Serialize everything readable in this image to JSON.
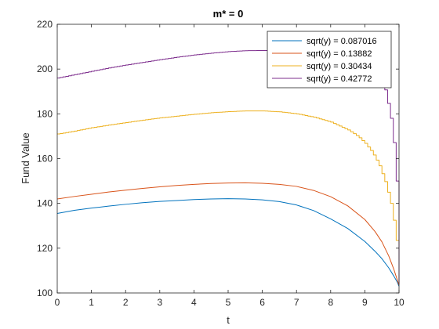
{
  "chart_data": {
    "type": "line",
    "title": "m* = 0",
    "xlabel": "t",
    "ylabel": "Fund Value",
    "xlim": [
      0,
      10
    ],
    "ylim": [
      100,
      220
    ],
    "xticks": [
      0,
      1,
      2,
      3,
      4,
      5,
      6,
      7,
      8,
      9,
      10
    ],
    "yticks": [
      100,
      120,
      140,
      160,
      180,
      200,
      220
    ],
    "grid": false,
    "legend_position": "top-right",
    "series": [
      {
        "name": "sqrt(y) = 0.087016",
        "color": "#0072BD",
        "stepped": false,
        "x": [
          0,
          0.5,
          1,
          1.5,
          2,
          2.5,
          3,
          3.5,
          4,
          4.5,
          5,
          5.5,
          6,
          6.5,
          7,
          7.5,
          8,
          8.5,
          9,
          9.3,
          9.5,
          9.7,
          9.85,
          9.95,
          10
        ],
        "y": [
          135.5,
          136.9,
          137.9,
          138.8,
          139.6,
          140.3,
          140.9,
          141.3,
          141.7,
          142.0,
          142.1,
          142.0,
          141.6,
          140.8,
          139.3,
          136.8,
          133.1,
          128.8,
          123.0,
          118.6,
          115.3,
          111.2,
          107.5,
          104.8,
          103.0
        ]
      },
      {
        "name": "sqrt(y) = 0.13882",
        "color": "#D95319",
        "stepped": false,
        "x": [
          0,
          0.5,
          1,
          1.5,
          2,
          2.5,
          3,
          3.5,
          4,
          4.5,
          5,
          5.5,
          6,
          6.5,
          7,
          7.5,
          8,
          8.5,
          9,
          9.3,
          9.5,
          9.7,
          9.85,
          9.95,
          10
        ],
        "y": [
          142.0,
          143.1,
          144.1,
          145.1,
          145.9,
          146.7,
          147.4,
          148.0,
          148.5,
          148.9,
          149.1,
          149.2,
          149.0,
          148.5,
          147.6,
          145.8,
          143.0,
          138.9,
          132.8,
          127.4,
          122.8,
          116.5,
          110.5,
          105.8,
          103.5
        ]
      },
      {
        "name": "sqrt(y) = 0.30434",
        "color": "#EDB120",
        "stepped": true,
        "x": [
          0,
          0.5,
          1,
          1.5,
          2,
          2.5,
          3,
          3.5,
          4,
          4.5,
          5,
          5.5,
          6,
          6.5,
          7,
          7.5,
          8,
          8.5,
          8.8,
          9,
          9.2,
          9.4,
          9.6,
          9.75,
          9.85,
          9.93,
          9.97,
          10
        ],
        "y": [
          171.0,
          172.3,
          173.8,
          175.0,
          176.1,
          177.2,
          178.2,
          179.0,
          179.8,
          180.5,
          181.0,
          181.3,
          181.3,
          180.9,
          180.0,
          178.5,
          176.3,
          172.8,
          169.8,
          166.8,
          163.0,
          157.5,
          149.0,
          140.0,
          131.0,
          122.0,
          112.0,
          104.0
        ]
      },
      {
        "name": "sqrt(y) = 0.42772",
        "color": "#7E2F8E",
        "stepped": true,
        "x": [
          0,
          0.5,
          1,
          1.5,
          2,
          2.5,
          3,
          3.5,
          4,
          4.5,
          5,
          5.5,
          6,
          6.5,
          7,
          7.5,
          8,
          8.5,
          8.8,
          9,
          9.2,
          9.4,
          9.6,
          9.75,
          9.85,
          9.93,
          9.97,
          10
        ],
        "y": [
          196.0,
          197.5,
          199.0,
          200.5,
          201.8,
          203.0,
          204.2,
          205.3,
          206.3,
          207.1,
          207.8,
          208.2,
          208.3,
          208.3,
          208.3,
          208.3,
          208.3,
          208.2,
          208.0,
          206.5,
          203.5,
          198.5,
          190.0,
          178.0,
          165.0,
          147.0,
          127.0,
          104.0
        ]
      }
    ]
  }
}
